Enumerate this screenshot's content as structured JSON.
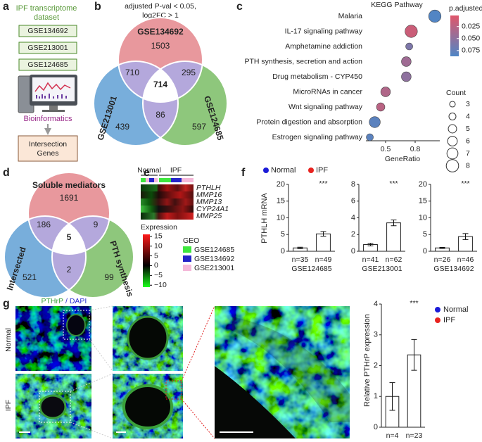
{
  "a": {
    "label": "a",
    "title_lines": [
      "IPF transcriptome",
      "dataset"
    ],
    "datasets": [
      "GSE134692",
      "GSE213001",
      "GSE124685"
    ],
    "tool": "Bioinformatics",
    "output_lines": [
      "Intersection",
      "Genes"
    ]
  },
  "b": {
    "label": "b",
    "criteria_lines": [
      "adjusted P-val < 0.05,",
      "log2FC > 1"
    ],
    "sets": [
      "GSE134692",
      "GSE213001",
      "GSE124685"
    ],
    "counts": [
      1503,
      710,
      295,
      714,
      439,
      86,
      597
    ]
  },
  "c": {
    "label": "c"
  },
  "d": {
    "label": "d",
    "sets": [
      "Soluble mediators",
      "Intersected",
      "PTH synthesis"
    ],
    "counts": [
      1691,
      186,
      9,
      5,
      521,
      2,
      99
    ]
  },
  "e": {
    "label": "e",
    "groups": [
      "Normal",
      "IPF"
    ],
    "genes": [
      "PTHLH",
      "MMP16",
      "MMP13",
      "CYP24A1",
      "MMP25"
    ],
    "colorbar_title": "Expression",
    "colorbar_lim": [
      -11,
      16
    ],
    "colorbar_ticks": [
      15,
      10,
      5,
      0,
      {
        "value": -5,
        "label": "−5"
      },
      {
        "value": -10,
        "label": "−10"
      }
    ],
    "geo_title": "GEO",
    "geo": [
      {
        "name": "GSE124685",
        "color": "#3ee63e"
      },
      {
        "name": "GSE134692",
        "color": "#2424c8"
      },
      {
        "name": "GSE213001",
        "color": "#f5b9d9"
      }
    ]
  },
  "f": {
    "label": "f",
    "legend": [
      "Normal",
      "IPF"
    ],
    "y_label": "PTHLH mRNA"
  },
  "g": {
    "label": "g",
    "stain": [
      "PTHrP",
      "/ DAPI"
    ],
    "rows": [
      "Normal",
      "IPF"
    ],
    "legend": [
      "Normal",
      "IPF"
    ],
    "y_label": "Relative PTHrP expression"
  },
  "chart_data": [
    {
      "type": "scatter",
      "title": "KEGG Pathway",
      "categories": [
        "Malaria",
        "IL-17 signaling pathway",
        "Amphetamine addiction",
        "PTH synthesis, secretion and action",
        "Drug metabolism - CYP450",
        "MicroRNAs in cancer",
        "Wnt signaling pathway",
        "Protein digestion and absorption",
        "Estrogen signaling pathway"
      ],
      "x": [
        1.0,
        0.76,
        0.74,
        0.71,
        0.71,
        0.5,
        0.45,
        0.39,
        0.34
      ],
      "count": [
        8,
        8,
        4,
        6,
        6,
        6,
        5,
        7,
        4
      ],
      "p_adjusted": [
        0.085,
        0.015,
        0.06,
        0.04,
        0.05,
        0.03,
        0.025,
        0.08,
        0.08
      ],
      "xlim": [
        0.3,
        1.05
      ],
      "xticks": [
        0.5,
        0.8
      ],
      "xlabel": "GeneRatio",
      "color_label": "p.adjusted",
      "color_lim": [
        0.002,
        0.087
      ],
      "color_ticks": [
        0.025,
        {
          "value": 0.05,
          "label": "0.050"
        },
        0.075
      ],
      "colors": [
        "#e0566a",
        "#4f86c6"
      ],
      "size_label": "Count",
      "size_ticks": [
        3,
        4,
        5,
        6,
        7,
        8
      ]
    },
    {
      "type": "bar",
      "categories": [
        "n=35",
        "n=49"
      ],
      "values": [
        1.0,
        5.2
      ],
      "errors": [
        0.2,
        0.7
      ],
      "colors": [
        "#1c1cd8",
        "#e8231f"
      ],
      "ylim": [
        0,
        20
      ],
      "yticks": [
        0,
        5,
        10,
        15,
        20
      ],
      "xlabel": "GSE124685",
      "annotation": "***"
    },
    {
      "type": "bar",
      "categories": [
        "n=41",
        "n=62"
      ],
      "values": [
        0.8,
        3.4
      ],
      "errors": [
        0.15,
        0.35
      ],
      "colors": [
        "#1c1cd8",
        "#e8231f"
      ],
      "ylim": [
        0,
        8
      ],
      "yticks": [
        0,
        2,
        4,
        6,
        8
      ],
      "xlabel": "GSE213001",
      "annotation": "***"
    },
    {
      "type": "bar",
      "categories": [
        "n=26",
        "n=46"
      ],
      "values": [
        1.0,
        4.4
      ],
      "errors": [
        0.15,
        0.9
      ],
      "colors": [
        "#1c1cd8",
        "#e8231f"
      ],
      "ylim": [
        0,
        20
      ],
      "yticks": [
        0,
        5,
        10,
        15,
        20
      ],
      "xlabel": "GSE134692",
      "annotation": "***"
    },
    {
      "type": "bar",
      "categories": [
        "n=4",
        "n=23"
      ],
      "values": [
        1.0,
        2.35
      ],
      "errors": [
        0.45,
        0.5
      ],
      "colors": [
        "#1c1cd8",
        "#e8231f"
      ],
      "ylim": [
        0,
        4
      ],
      "yticks": [
        0,
        1,
        2,
        3,
        4
      ],
      "annotation": "***"
    }
  ]
}
